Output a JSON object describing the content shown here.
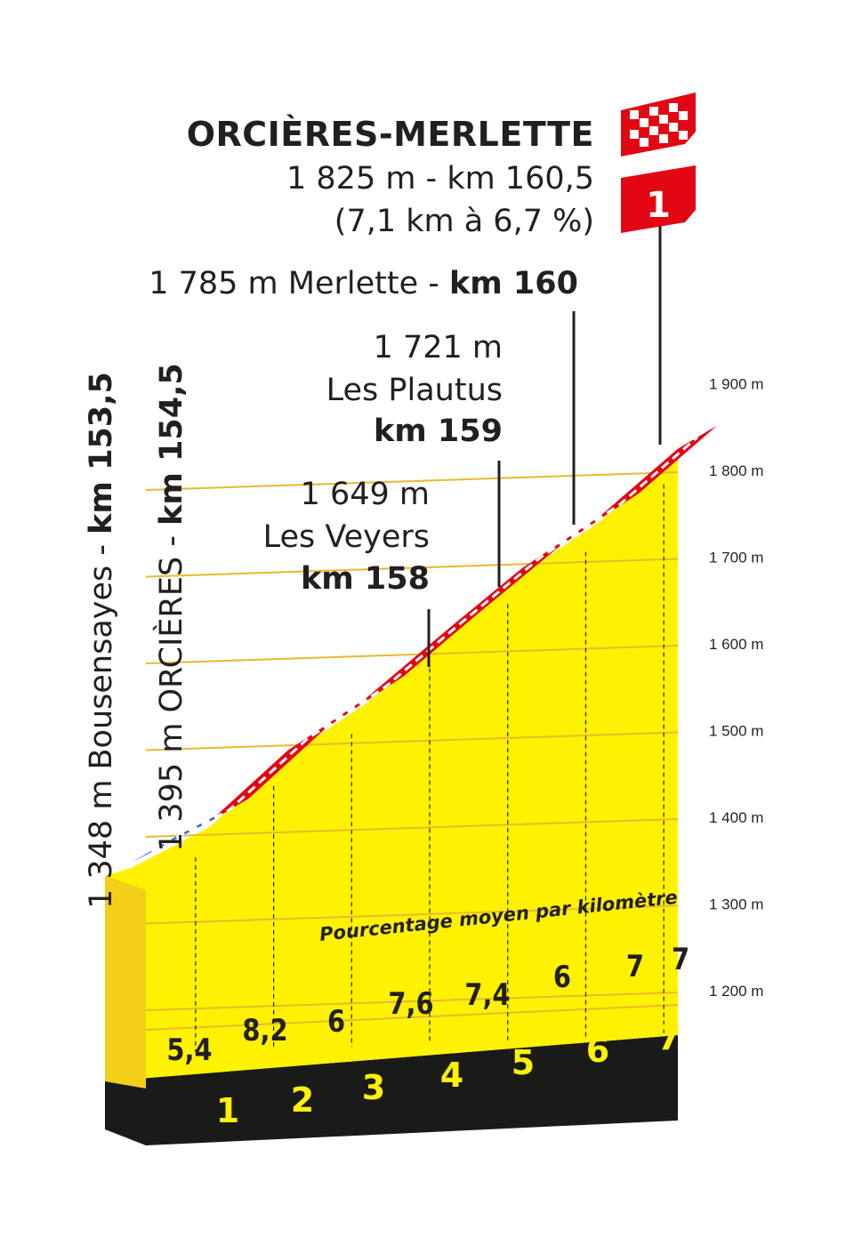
{
  "summit": {
    "name": "ORCIÈRES-MERLETTE",
    "line1": "1 825 m - km 160,5",
    "line2": "(7,1 km à 6,7 %)",
    "category": "1"
  },
  "waypoints": [
    {
      "text_plain": "1 785 m Merlette - ",
      "text_bold": "km 160"
    },
    {
      "line1": "1 721 m",
      "line2": "Les Plautus",
      "km": "km 159"
    },
    {
      "line1": "1 649 m",
      "line2": "Les Veyers",
      "km": "km 158"
    }
  ],
  "start_labels": [
    {
      "plain": "1 348 m Bousensayes - ",
      "bold": "km 153,5"
    },
    {
      "plain": "1 395 m ORCIÈRES - ",
      "bold": "km 154,5"
    }
  ],
  "gradient_caption": "Pourcentage moyen par kilomètre",
  "colors": {
    "climb": "#e30613",
    "approach": "#2d7ec3",
    "fill": "#fff200",
    "fill_side": "#f3cf1a",
    "base": "#1a1a18",
    "km_number": "#fff200",
    "grid": "#e8b92c"
  },
  "chart_data": {
    "type": "area",
    "title": "",
    "xlabel": "",
    "ylabel": "",
    "ylim": [
      1150,
      1950
    ],
    "y_ticks": [
      "1 200 m",
      "1 300 m",
      "1 400 m",
      "1 500 m",
      "1 600 m",
      "1 700 m",
      "1 800 m",
      "1 900 m"
    ],
    "y_tick_values": [
      1200,
      1300,
      1400,
      1500,
      1600,
      1700,
      1800,
      1900
    ],
    "km_markers": [
      "1",
      "2",
      "3",
      "4",
      "5",
      "6",
      "7"
    ],
    "gradients": [
      "5,4",
      "8,2",
      "6",
      "7,6",
      "7,4",
      "6",
      "7",
      "7"
    ],
    "profile": [
      {
        "km": 153.5,
        "elevation": 1348,
        "segment": "approach"
      },
      {
        "km": 154.5,
        "elevation": 1395,
        "segment": "approach"
      },
      {
        "km": 155.5,
        "elevation": 1477,
        "segment": "climb"
      },
      {
        "km": 156.5,
        "elevation": 1537,
        "segment": "climb"
      },
      {
        "km": 157.5,
        "elevation": 1613,
        "segment": "climb"
      },
      {
        "km": 158.5,
        "elevation": 1687,
        "segment": "climb"
      },
      {
        "km": 159.5,
        "elevation": 1747,
        "segment": "climb"
      },
      {
        "km": 160.5,
        "elevation": 1825,
        "segment": "climb"
      }
    ]
  }
}
